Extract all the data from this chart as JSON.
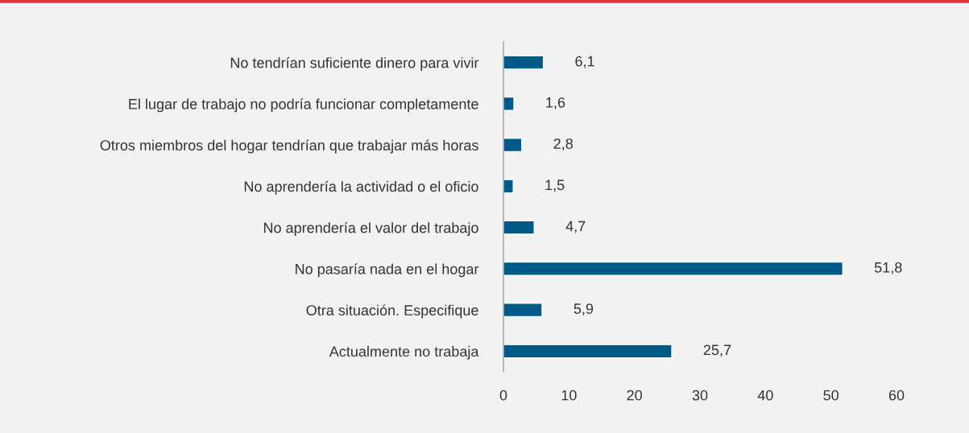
{
  "chart_data": {
    "type": "bar",
    "orientation": "horizontal",
    "categories": [
      "No tendrían suficiente dinero para vivir",
      "El lugar de trabajo no podría funcionar completamente",
      "Otros miembros del hogar tendrían que trabajar más horas",
      "No aprendería la actividad o el oficio",
      "No aprendería el valor del trabajo",
      "No pasaría nada en el hogar",
      "Otra situación. Especifique",
      "Actualmente no trabaja"
    ],
    "values": [
      6.1,
      1.6,
      2.8,
      1.5,
      4.7,
      51.8,
      5.9,
      25.7
    ],
    "value_labels": [
      "6,1",
      "1,6",
      "2,8",
      "1,5",
      "4,7",
      "51,8",
      "5,9",
      "25,7"
    ],
    "color": "#005a87",
    "xlim": [
      0,
      60
    ],
    "xticks": [
      0,
      10,
      20,
      30,
      40,
      50,
      60
    ],
    "grid": false,
    "legend": false
  }
}
